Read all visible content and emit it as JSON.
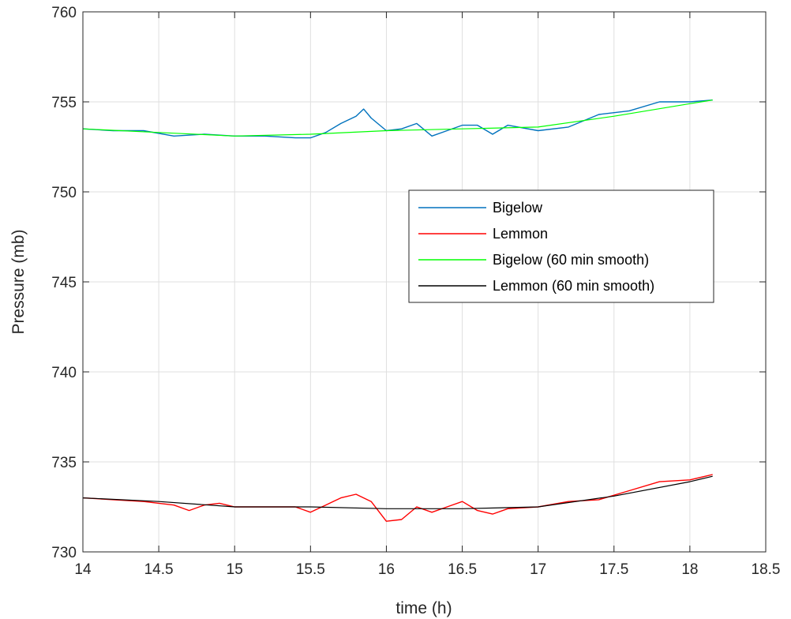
{
  "chart_data": {
    "type": "line",
    "title": "",
    "xlabel": "time (h)",
    "ylabel": "Pressure (mb)",
    "xlim": [
      14,
      18.5
    ],
    "ylim": [
      730,
      760
    ],
    "xticks": [
      "14",
      "14.5",
      "15",
      "15.5",
      "16",
      "16.5",
      "17",
      "17.5",
      "18",
      "18.5"
    ],
    "yticks": [
      "730",
      "735",
      "740",
      "745",
      "750",
      "755",
      "760"
    ],
    "grid": true,
    "legend_position": "center-right",
    "series": [
      {
        "name": "Bigelow",
        "color": "#0072BD",
        "x": [
          14.0,
          14.2,
          14.4,
          14.6,
          14.8,
          15.0,
          15.2,
          15.4,
          15.5,
          15.6,
          15.7,
          15.8,
          15.85,
          15.9,
          16.0,
          16.1,
          16.2,
          16.3,
          16.4,
          16.5,
          16.6,
          16.7,
          16.8,
          17.0,
          17.2,
          17.4,
          17.6,
          17.8,
          18.0,
          18.15
        ],
        "y": [
          753.5,
          753.4,
          753.4,
          753.1,
          753.2,
          753.1,
          753.1,
          753.0,
          753.0,
          753.3,
          753.8,
          754.2,
          754.6,
          754.1,
          753.4,
          753.5,
          753.8,
          753.1,
          753.4,
          753.7,
          753.7,
          753.2,
          753.7,
          753.4,
          753.6,
          754.3,
          754.5,
          755.0,
          755.0,
          755.1
        ]
      },
      {
        "name": "Lemmon",
        "color": "#FF0000",
        "x": [
          14.0,
          14.2,
          14.4,
          14.6,
          14.7,
          14.8,
          14.9,
          15.0,
          15.2,
          15.4,
          15.5,
          15.6,
          15.7,
          15.8,
          15.9,
          16.0,
          16.1,
          16.2,
          16.3,
          16.4,
          16.5,
          16.6,
          16.7,
          16.8,
          17.0,
          17.2,
          17.4,
          17.6,
          17.8,
          18.0,
          18.15
        ],
        "y": [
          733.0,
          732.9,
          732.8,
          732.6,
          732.3,
          732.6,
          732.7,
          732.5,
          732.5,
          732.5,
          732.2,
          732.6,
          733.0,
          733.2,
          732.8,
          731.7,
          731.8,
          732.5,
          732.2,
          732.5,
          732.8,
          732.3,
          732.1,
          732.4,
          732.5,
          732.8,
          732.9,
          733.4,
          733.9,
          734.0,
          734.3
        ]
      },
      {
        "name": "Bigelow (60 min smooth)",
        "color": "#00FF00",
        "x": [
          14.0,
          14.5,
          15.0,
          15.5,
          16.0,
          16.5,
          17.0,
          17.5,
          18.0,
          18.15
        ],
        "y": [
          753.5,
          753.3,
          753.1,
          753.2,
          753.4,
          753.5,
          753.6,
          754.2,
          754.9,
          755.1
        ]
      },
      {
        "name": "Lemmon (60 min smooth)",
        "color": "#000000",
        "x": [
          14.0,
          14.5,
          15.0,
          15.5,
          16.0,
          16.5,
          17.0,
          17.5,
          18.0,
          18.15
        ],
        "y": [
          733.0,
          732.8,
          732.5,
          732.5,
          732.4,
          732.4,
          732.5,
          733.1,
          733.9,
          734.2
        ]
      }
    ]
  }
}
